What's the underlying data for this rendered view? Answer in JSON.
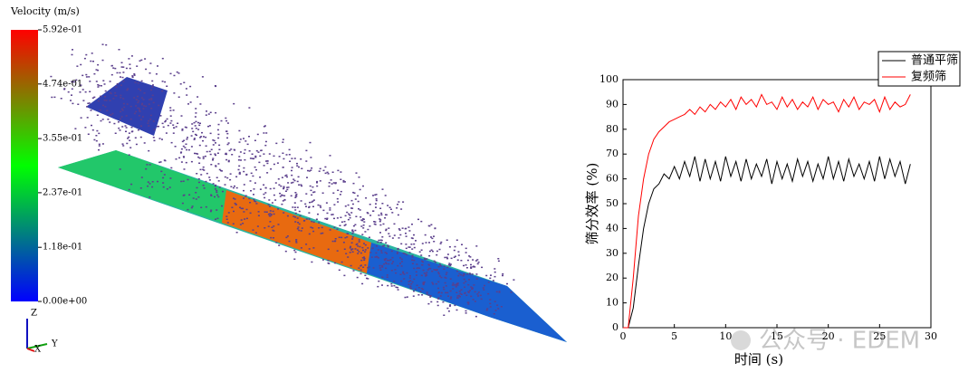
{
  "simulation": {
    "colorbar_title": "Velocity (m/s)",
    "colorbar_lim": [
      0,
      0.592
    ],
    "colorbar_ticks": [
      {
        "value": 0.592,
        "label": "5.92e-01"
      },
      {
        "value": 0.474,
        "label": "4.74e-01"
      },
      {
        "value": 0.355,
        "label": "3.55e-01"
      },
      {
        "value": 0.237,
        "label": "2.37e-01"
      },
      {
        "value": 0.118,
        "label": "1.18e-01"
      },
      {
        "value": 0,
        "label": "0.00e+00"
      }
    ],
    "axis_labels": [
      "Z",
      "X",
      "Y"
    ]
  },
  "watermark": "公众号 · EDEM",
  "chart_data": {
    "type": "line",
    "xlabel": "时间 (s)",
    "ylabel": "筛分效率 (%)",
    "x": [
      0,
      0.5,
      1,
      1.5,
      2,
      2.5,
      3,
      3.5,
      4,
      4.5,
      5,
      5.5,
      6,
      6.5,
      7,
      7.5,
      8,
      8.5,
      9,
      9.5,
      10,
      10.5,
      11,
      11.5,
      12,
      12.5,
      13,
      13.5,
      14,
      14.5,
      15,
      15.5,
      16,
      16.5,
      17,
      17.5,
      18,
      18.5,
      19,
      19.5,
      20,
      20.5,
      21,
      21.5,
      22,
      22.5,
      23,
      23.5,
      24,
      24.5,
      25,
      25.5,
      26,
      26.5,
      27,
      27.5,
      28
    ],
    "series": [
      {
        "name": "普通平筛",
        "color": "#000000",
        "values": [
          0,
          0,
          8,
          25,
          40,
          50,
          56,
          58,
          62,
          60,
          65,
          60,
          67,
          61,
          69,
          59,
          68,
          60,
          67,
          59,
          69,
          61,
          67,
          59,
          68,
          60,
          66,
          61,
          68,
          58,
          67,
          60,
          66,
          59,
          68,
          61,
          67,
          59,
          66,
          60,
          69,
          60,
          67,
          59,
          68,
          61,
          66,
          60,
          67,
          59,
          69,
          60,
          68,
          61,
          67,
          58,
          66
        ]
      },
      {
        "name": "复频筛",
        "color": "#ff0000",
        "values": [
          0,
          0,
          20,
          45,
          60,
          70,
          76,
          79,
          81,
          83,
          84,
          85,
          86,
          88,
          86,
          89,
          87,
          90,
          88,
          91,
          89,
          92,
          88,
          93,
          90,
          92,
          89,
          94,
          90,
          91,
          88,
          93,
          89,
          92,
          88,
          91,
          89,
          93,
          88,
          92,
          90,
          91,
          87,
          92,
          89,
          93,
          88,
          91,
          90,
          92,
          87,
          93,
          88,
          91,
          89,
          90,
          94
        ]
      }
    ],
    "xlim": [
      0,
      30
    ],
    "xticks": [
      0,
      5,
      10,
      15,
      20,
      25,
      30
    ],
    "ylim": [
      0,
      100
    ],
    "yticks": [
      0,
      10,
      20,
      30,
      40,
      50,
      60,
      70,
      80,
      90,
      100
    ],
    "legend": "upper right"
  }
}
